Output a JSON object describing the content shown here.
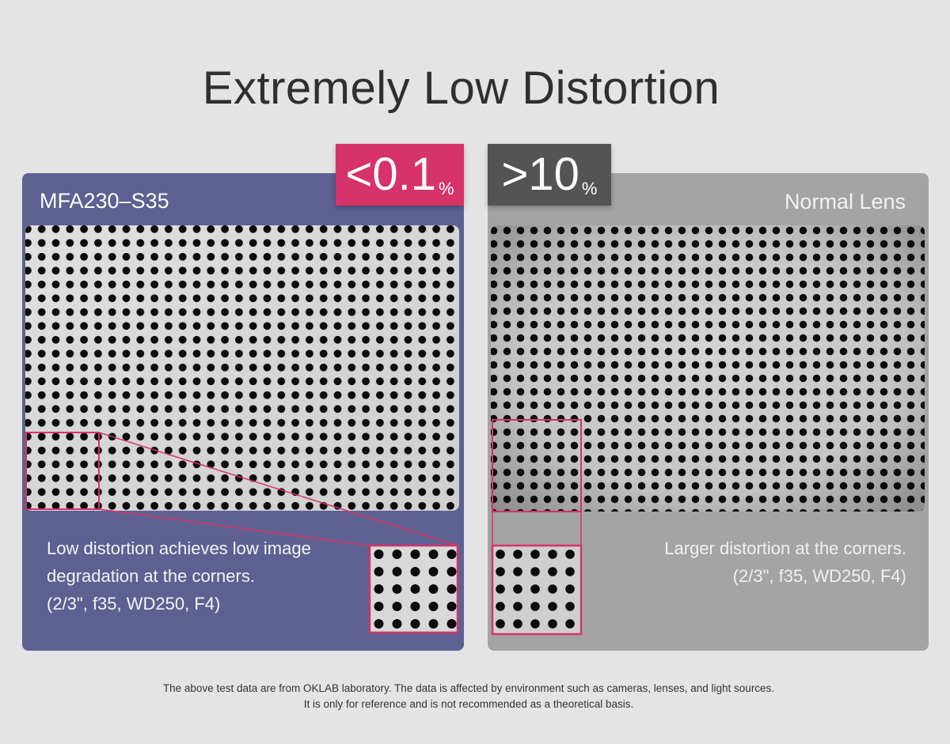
{
  "title": "Extremely Low Distortion",
  "left": {
    "badge_value": "<0.1",
    "badge_unit": "%",
    "label": "MFA230–S35",
    "description": [
      "Low distortion achieves low image",
      "degradation at the corners.",
      "(2/3\", f35, WD250, F4)"
    ]
  },
  "right": {
    "badge_value": ">10",
    "badge_unit": "%",
    "label": "Normal Lens",
    "description": [
      "Larger distortion at the corners.",
      "(2/3\", f35, WD250, F4)"
    ]
  },
  "footer": [
    "The above test data are from OKLAB laboratory. The data is affected by environment such as cameras, lenses, and light sources.",
    "It is only for reference and is not recommended as a theoretical basis."
  ],
  "colors": {
    "accent": "#d5336a",
    "left_panel": "#5e6091",
    "right_panel": "#a4a4a4",
    "dark_badge": "#545454"
  }
}
